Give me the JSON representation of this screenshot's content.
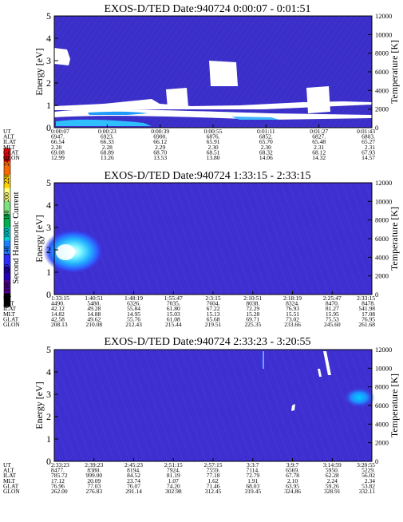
{
  "colorbar": {
    "label": "Second Harmonic Current",
    "ticks": [
      "240",
      "220",
      "200",
      "180",
      "160",
      "140",
      "120",
      "100",
      "80"
    ],
    "colors": [
      "#ff0000",
      "#ff6a00",
      "#ffd000",
      "#ffff80",
      "#7ee07e",
      "#00b050",
      "#00d0d0",
      "#1f7fff",
      "#2b2bff",
      "#2000b0",
      "#500090",
      "#000000"
    ]
  },
  "chart_data": [
    {
      "type": "heatmap",
      "title": "EXOS-D/TED   Date:940724   0:00:07 - 0:01:51",
      "ylabel": "Energy [eV]",
      "ylabel_right": "Temperature [K]",
      "yticks": [
        "0",
        "1",
        "2",
        "3",
        "4",
        "5"
      ],
      "yticks_right": [
        "0",
        "2000",
        "4000",
        "6000",
        "8000",
        "10000",
        "12000"
      ],
      "ylim": [
        0,
        5
      ],
      "ylim_right": [
        0,
        12000
      ],
      "row_labels": [
        "UT",
        "ALT",
        "ILAT",
        "MLT",
        "GLAT",
        "GLON"
      ],
      "columns": [
        [
          "0:00:07",
          "6947.",
          "66.54",
          "2.28",
          "69.08",
          "12.99"
        ],
        [
          "0:00:23",
          "6923.",
          "66.33",
          "2.28",
          "68.89",
          "13.26"
        ],
        [
          "0:00:39",
          "6900.",
          "66.12",
          "2.29",
          "68.70",
          "13.53"
        ],
        [
          "0:00:55",
          "6876.",
          "65.91",
          "2.30",
          "68.51",
          "13.80"
        ],
        [
          "0:01:11",
          "6852.",
          "65.70",
          "2.30",
          "68.32",
          "14.06"
        ],
        [
          "0:01:27",
          "6827.",
          "65.48",
          "2.31",
          "68.12",
          "14.32"
        ],
        [
          "0:01:43",
          "6803.",
          "65.27",
          "2.31",
          "67.93",
          "14.57"
        ]
      ]
    },
    {
      "type": "heatmap",
      "title": "EXOS-D/TED   Date:940724   1:33:15 - 2:33:15",
      "ylabel": "Energy [eV]",
      "ylabel_right": "Temperature [K]",
      "yticks": [
        "0",
        "1",
        "2",
        "3",
        "4",
        "5"
      ],
      "yticks_right": [
        "0",
        "2000",
        "4000",
        "6000",
        "8000",
        "10000",
        "12000"
      ],
      "ylim": [
        0,
        5
      ],
      "ylim_right": [
        0,
        12000
      ],
      "row_labels": [
        "UT",
        "ALT",
        "ILAT",
        "MLT",
        "GLAT",
        "GLON"
      ],
      "columns": [
        [
          "1:33:15",
          "4490.",
          "42.12",
          "14.82",
          "42.58",
          "208.13"
        ],
        [
          "1:40:51",
          "5480.",
          "49.28",
          "14.88",
          "49.62",
          "210.08"
        ],
        [
          "1:48:19",
          "6326.",
          "55.84",
          "14.95",
          "55.76",
          "212.43"
        ],
        [
          "1:55:47",
          "7035.",
          "61.80",
          "15.03",
          "61.08",
          "215.44"
        ],
        [
          "2:3:15",
          "7604.",
          "67.22",
          "15.13",
          "65.68",
          "219.51"
        ],
        [
          "2:10:51",
          "8038.",
          "72.29",
          "15.28",
          "69.71",
          "225.35"
        ],
        [
          "2:18:19",
          "8324.",
          "76.93",
          "15.51",
          "73.02",
          "233.66"
        ],
        [
          "2:25:47",
          "8470.",
          "81.27",
          "15.95",
          "75.53",
          "245.60"
        ],
        [
          "2:33:15",
          "8478.",
          "541.98",
          "17.08",
          "76.95",
          "261.68"
        ]
      ]
    },
    {
      "type": "heatmap",
      "title": "EXOS-D/TED   Date:940724   2:33:23 - 3:20:55",
      "ylabel": "Energy [eV]",
      "ylabel_right": "Temperature [K]",
      "yticks": [
        "0",
        "1",
        "2",
        "3",
        "4",
        "5"
      ],
      "yticks_right": [
        "0",
        "2000",
        "4000",
        "6000",
        "8000",
        "10000",
        "12000"
      ],
      "ylim": [
        0,
        5
      ],
      "ylim_right": [
        0,
        12000
      ],
      "row_labels": [
        "UT",
        "ALT",
        "ILAT",
        "MLT",
        "GLAT",
        "GLON"
      ],
      "columns": [
        [
          "2:33:23",
          "8477.",
          "785.72",
          "17.12",
          "76.96",
          "262.00"
        ],
        [
          "2:39:23",
          "8380.",
          "999.00",
          "20.09",
          "77.03",
          "276.83"
        ],
        [
          "2:45:23",
          "8194.",
          "84.52",
          "23.74",
          "76.07",
          "291.14"
        ],
        [
          "2:51:15",
          "7924.",
          "81.19",
          "1.07",
          "74.20",
          "302.98"
        ],
        [
          "2:57:15",
          "7559.",
          "77.18",
          "1.62",
          "71.46",
          "312.45"
        ],
        [
          "3:3:7",
          "7114.",
          "72.79",
          "1.91",
          "68.03",
          "319.45"
        ],
        [
          "3:9:7",
          "6569.",
          "67.78",
          "2.10",
          "63.95",
          "324.86"
        ],
        [
          "3:14:59",
          "5950.",
          "62.28",
          "2.24",
          "59.26",
          "328.91"
        ],
        [
          "3:20:55",
          "5229.",
          "56.02",
          "2.34",
          "53.82",
          "332.11"
        ]
      ]
    }
  ]
}
